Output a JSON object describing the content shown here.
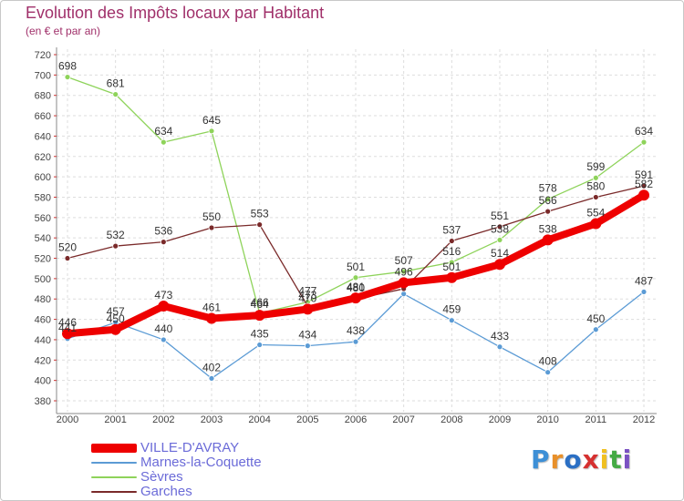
{
  "title": "Evolution des Impôts locaux par Habitant",
  "subtitle": "(en € et par an)",
  "brand": {
    "text": "Proxiti",
    "letter_colors": [
      "#3d8fd6",
      "#e8902a",
      "#2b6fc4",
      "#d63030",
      "#f0c020",
      "#44aa44",
      "#7a52c2"
    ]
  },
  "chart_data": {
    "type": "line",
    "x": [
      "2000",
      "2001",
      "2002",
      "2003",
      "2004",
      "2005",
      "2006",
      "2007",
      "2008",
      "2009",
      "2010",
      "2011",
      "2012"
    ],
    "ylim": [
      380,
      720
    ],
    "yticks": [
      380,
      400,
      420,
      440,
      460,
      480,
      500,
      520,
      540,
      560,
      580,
      600,
      620,
      640,
      660,
      680,
      700,
      720
    ],
    "grid": true,
    "legend_position": "bottom-left",
    "series": [
      {
        "name": "VILLE-D'AVRAY",
        "color": "#ee0000",
        "values": [
          446,
          450,
          473,
          461,
          464,
          470,
          481,
          496,
          501,
          514,
          538,
          554,
          582
        ],
        "labels": [
          "446",
          "450",
          "473",
          "461",
          "464",
          "470",
          "481",
          "496",
          "501",
          "514",
          "538",
          "554",
          "582"
        ]
      },
      {
        "name": "Marnes-la-Coquette",
        "color": "#5b9bd5",
        "values": [
          441,
          457,
          440,
          402,
          435,
          434,
          438,
          485,
          459,
          433,
          408,
          450,
          487
        ],
        "labels": [
          "441",
          "457",
          "440",
          "402",
          "435",
          "434",
          "438",
          "",
          "459",
          "433",
          "408",
          "450",
          "487"
        ]
      },
      {
        "name": "Sèvres",
        "color": "#8ed35a",
        "values": [
          698,
          681,
          634,
          645,
          466,
          477,
          501,
          507,
          516,
          538,
          578,
          599,
          634
        ],
        "labels": [
          "698",
          "681",
          "634",
          "645",
          "466",
          "477",
          "501",
          "507",
          "516",
          "538",
          "578",
          "599",
          "634"
        ]
      },
      {
        "name": "Garches",
        "color": "#7a2a2a",
        "values": [
          520,
          532,
          536,
          550,
          553,
          473,
          480,
          490,
          537,
          551,
          566,
          580,
          591
        ],
        "labels": [
          "520",
          "532",
          "536",
          "550",
          "553",
          "473",
          "480",
          "",
          "537",
          "551",
          "566",
          "580",
          "591"
        ]
      }
    ]
  }
}
